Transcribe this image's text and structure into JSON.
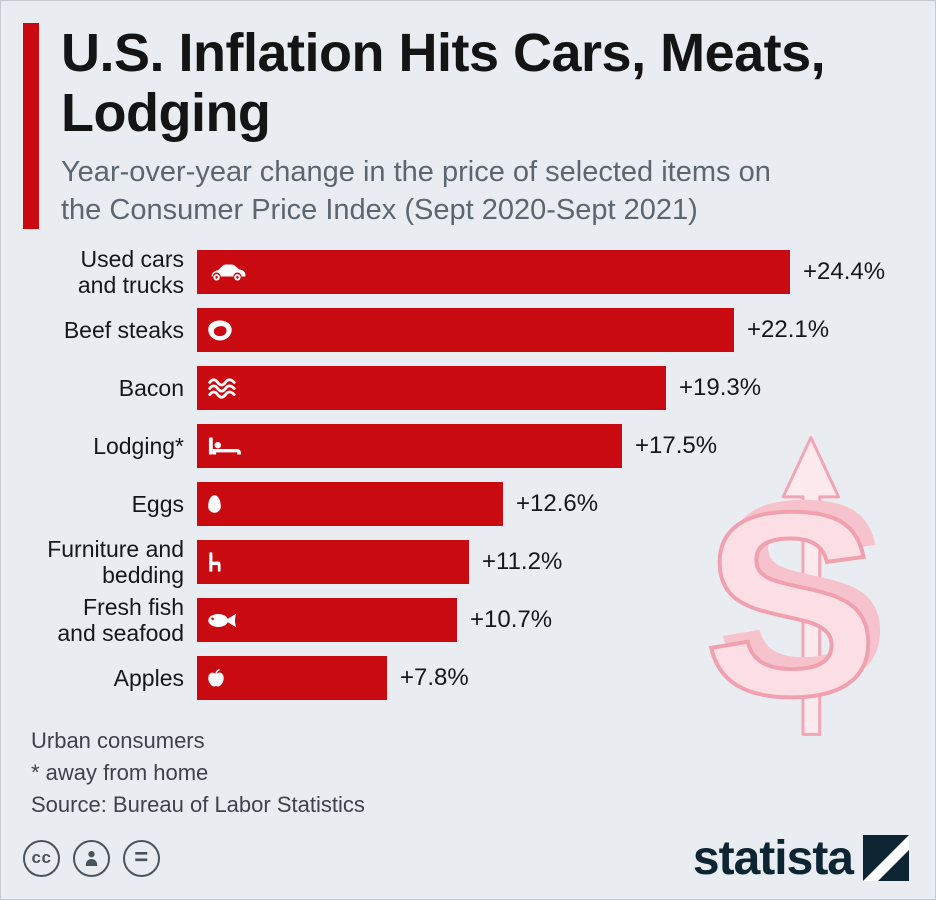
{
  "header": {
    "title": "U.S. Inflation Hits Cars, Meats, Lodging",
    "subtitle": "Year-over-year change in the price of selected items on the Consumer Price Index (Sept 2020-Sept 2021)"
  },
  "chart_data": {
    "type": "bar",
    "orientation": "horizontal",
    "title": "U.S. Inflation Hits Cars, Meats, Lodging",
    "subtitle": "Year-over-year change in the price of selected items on the Consumer Price Index (Sept 2020-Sept 2021)",
    "categories": [
      "Used cars and trucks",
      "Beef steaks",
      "Bacon",
      "Lodging*",
      "Eggs",
      "Furniture and bedding",
      "Fresh fish and seafood",
      "Apples"
    ],
    "values": [
      24.4,
      22.1,
      19.3,
      17.5,
      12.6,
      11.2,
      10.7,
      7.8
    ],
    "value_labels": [
      "+24.4%",
      "+22.1%",
      "+19.3%",
      "+17.5%",
      "+12.6%",
      "+11.2%",
      "+10.7%",
      "+7.8%"
    ],
    "icons": [
      "car-icon",
      "steak-icon",
      "bacon-icon",
      "bed-icon",
      "egg-icon",
      "chair-icon",
      "fish-icon",
      "apple-icon"
    ],
    "unit": "%",
    "xlim": [
      0,
      25
    ],
    "bar_color": "#c90a11",
    "grid": false,
    "legend": false
  },
  "footer": {
    "note1": "Urban consumers",
    "note2": "* away from home",
    "source": "Source: Bureau of Labor Statistics"
  },
  "branding": {
    "logo_text": "statista",
    "license": {
      "cc": "cc",
      "nd": "="
    },
    "license_icons": [
      "cc-icon",
      "attribution-icon",
      "equals-icon"
    ]
  },
  "colors": {
    "background": "#e9edf2",
    "bar": "#c90a11",
    "accent": "#c90a11",
    "logo_navy": "#0d2433",
    "dollar_pink_fill": "#fcdfe5",
    "dollar_pink_stroke": "#f1a0af"
  }
}
